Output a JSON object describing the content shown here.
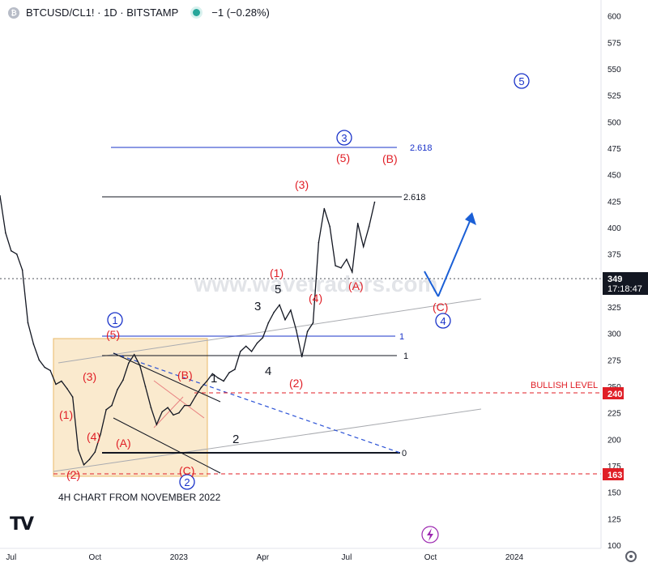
{
  "header": {
    "symbol": "BTCUSD/CL1! · 1D · BITSTAMP",
    "change": "−1 (−0.28%)"
  },
  "watermark": "www.wavetraders.com",
  "colors": {
    "price": "#131722",
    "blue": "#1a33c9",
    "red": "#e01e26",
    "grey": "#9e9e9e",
    "box": "#f5d9a6",
    "axis_text": "#131722"
  },
  "icons": [
    "tradingview-logo-icon",
    "lightning-icon",
    "gear-icon",
    "symbol-logo-icon"
  ],
  "chart_data": {
    "type": "line",
    "title": "BTCUSD/CL1! · 1D · BITSTAMP",
    "xlabel": "",
    "ylabel": "",
    "ylim": [
      97,
      615
    ],
    "y_ticks": [
      600,
      575,
      550,
      525,
      500,
      475,
      450,
      425,
      400,
      375,
      350,
      325,
      300,
      275,
      250,
      225,
      200,
      175,
      150,
      125,
      100
    ],
    "x_tick_labels": [
      "Jul",
      "Oct",
      "2023",
      "Apr",
      "Jul",
      "Oct",
      "2024"
    ],
    "x_tick_months": [
      0,
      3,
      6,
      9,
      12,
      15,
      18
    ],
    "x_origin": "2022-07",
    "x_range_months": [
      -0.4,
      21.1
    ],
    "series": [
      {
        "name": "BTCUSD/CL1!",
        "x_months": [
          -0.4,
          -0.2,
          0.0,
          0.2,
          0.4,
          0.6,
          0.8,
          1.0,
          1.2,
          1.4,
          1.6,
          1.8,
          2.0,
          2.2,
          2.4,
          2.6,
          2.8,
          3.0,
          3.2,
          3.4,
          3.6,
          3.8,
          4.0,
          4.2,
          4.4,
          4.6,
          4.8,
          5.0,
          5.2,
          5.4,
          5.6,
          5.8,
          6.0,
          6.2,
          6.4,
          6.6,
          6.8,
          7.0,
          7.2,
          7.4,
          7.6,
          7.8,
          8.0,
          8.2,
          8.4,
          8.6,
          8.8,
          9.0,
          9.2,
          9.4,
          9.6,
          9.8,
          10.0,
          10.2,
          10.4,
          10.6,
          10.8,
          11.0,
          11.2,
          11.4,
          11.6,
          11.8,
          12.0,
          12.2,
          12.4,
          12.6,
          12.8,
          13.0
        ],
        "values": [
          430,
          395,
          378,
          375,
          360,
          310,
          290,
          275,
          268,
          265,
          252,
          255,
          248,
          240,
          190,
          176,
          181,
          188,
          205,
          228,
          232,
          247,
          256,
          272,
          280,
          270,
          250,
          230,
          214,
          226,
          230,
          223,
          225,
          232,
          232,
          241,
          249,
          255,
          262,
          258,
          255,
          263,
          266,
          283,
          288,
          283,
          291,
          296,
          310,
          320,
          327,
          313,
          322,
          303,
          278,
          302,
          310,
          386,
          418,
          401,
          364,
          362,
          370,
          358,
          404,
          382,
          401,
          424
        ]
      }
    ],
    "last_value": 349,
    "last_value_timer": "17:18:47",
    "level_labels": [
      {
        "value": 240,
        "label": "BULLISH LEVEL"
      },
      {
        "value": 163,
        "label": ""
      }
    ],
    "fib_lines": [
      {
        "label": "2.618",
        "value": 476
      },
      {
        "label": "2.618",
        "value": 428
      },
      {
        "label": "1",
        "value": 295
      },
      {
        "label": "1",
        "value": 276
      },
      {
        "label": "0",
        "value": 184
      }
    ],
    "wave_labels": {
      "blue_circled": [
        "1",
        "2",
        "3",
        "4",
        "5"
      ],
      "red": [
        "(1)",
        "(2)",
        "(3)",
        "(4)",
        "(5)",
        "(A)",
        "(B)",
        "(C)",
        "(1)",
        "(2)",
        "(3)",
        "(4)",
        "(5)",
        "(A)",
        "(B)",
        "(C)"
      ],
      "black": [
        "1",
        "2",
        "3",
        "4",
        "5"
      ]
    },
    "annotations": [
      "4H CHART FROM NOVEMBER 2022"
    ]
  }
}
